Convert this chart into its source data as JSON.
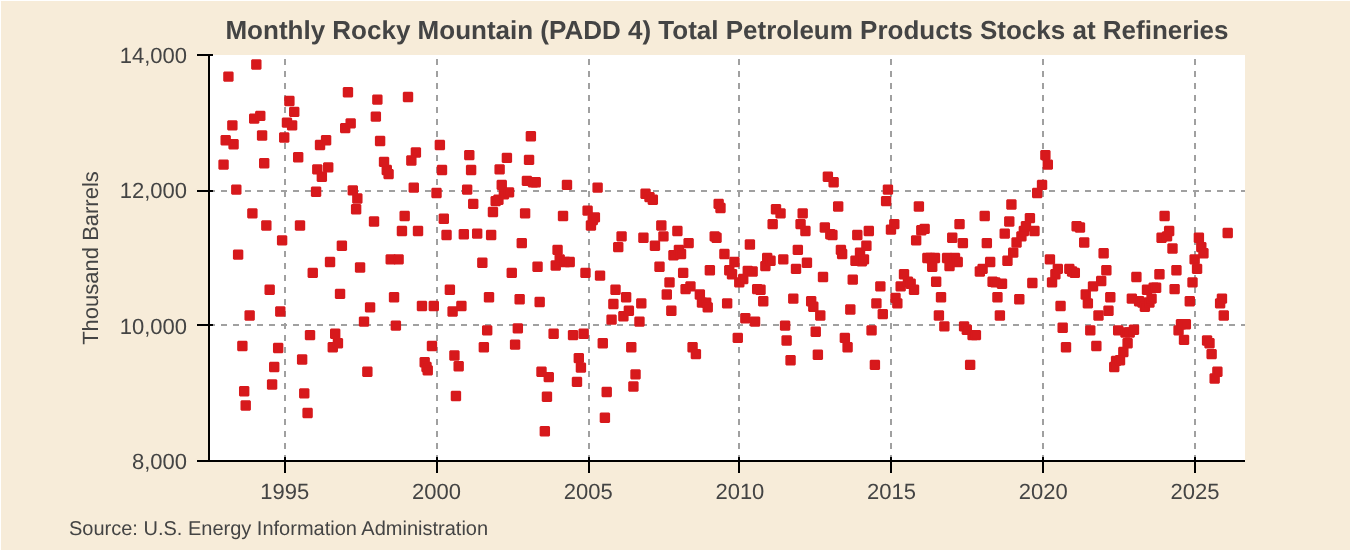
{
  "chart_data": {
    "type": "scatter",
    "title": "Monthly Rocky Mountain (PADD 4) Total Petroleum Products Stocks at Refineries",
    "ylabel": "Thousand Barrels",
    "annotations": [
      "Source: U.S. Energy Information Administration"
    ],
    "marker": "square",
    "grid": true,
    "xlim": [
      1992.5,
      2026.65
    ],
    "xticks": [
      1995,
      2000,
      2005,
      2010,
      2015,
      2020,
      2025
    ],
    "ylim": [
      8000,
      14000
    ],
    "yticks": [
      {
        "value": 8000,
        "label": "8,000"
      },
      {
        "value": 10000,
        "label": "10,000"
      },
      {
        "value": 12000,
        "label": "12,000"
      },
      {
        "value": 14000,
        "label": "14,000"
      }
    ],
    "series": [
      {
        "color": "#d7191c",
        "x": [
          1992.98,
          1993.05,
          1993.14,
          1993.27,
          1993.31,
          1993.4,
          1993.46,
          1993.6,
          1993.66,
          1993.71,
          1993.84,
          1993.93,
          1993.99,
          1994.06,
          1994.19,
          1994.25,
          1994.32,
          1994.39,
          1994.5,
          1994.58,
          1994.65,
          1994.78,
          1994.85,
          1994.91,
          1994.98,
          1995.07,
          1995.15,
          1995.24,
          1995.31,
          1995.44,
          1995.5,
          1995.57,
          1995.64,
          1995.75,
          1995.83,
          1995.92,
          1996.03,
          1996.07,
          1996.16,
          1996.22,
          1996.36,
          1996.43,
          1996.49,
          1996.58,
          1996.66,
          1996.75,
          1996.82,
          1996.88,
          1996.99,
          1997.08,
          1997.17,
          1997.24,
          1997.35,
          1997.39,
          1997.48,
          1997.61,
          1997.72,
          1997.81,
          1997.94,
          1998.0,
          1998.05,
          1998.14,
          1998.27,
          1998.36,
          1998.42,
          1998.49,
          1998.6,
          1998.66,
          1998.75,
          1998.86,
          1998.95,
          1999.06,
          1999.17,
          1999.25,
          1999.32,
          1999.39,
          1999.52,
          1999.61,
          1999.67,
          1999.71,
          1999.85,
          1999.91,
          2000.0,
          2000.11,
          2000.18,
          2000.24,
          2000.33,
          2000.44,
          2000.53,
          2000.59,
          2000.64,
          2000.73,
          2000.82,
          2000.9,
          2001.01,
          2001.08,
          2001.14,
          2001.21,
          2001.34,
          2001.51,
          2001.56,
          2001.67,
          2001.73,
          2001.8,
          2001.86,
          2001.95,
          2002.04,
          2002.08,
          2002.15,
          2002.22,
          2002.32,
          2002.39,
          2002.48,
          2002.59,
          2002.68,
          2002.74,
          2002.81,
          2002.92,
          2002.98,
          2003.05,
          2003.11,
          2003.18,
          2003.27,
          2003.33,
          2003.4,
          2003.46,
          2003.57,
          2003.64,
          2003.7,
          2003.86,
          2003.93,
          2003.99,
          2004.06,
          2004.17,
          2004.24,
          2004.3,
          2004.39,
          2004.5,
          2004.63,
          2004.69,
          2004.76,
          2004.85,
          2004.91,
          2004.98,
          2005.09,
          2005.15,
          2005.22,
          2005.31,
          2005.39,
          2005.48,
          2005.55,
          2005.61,
          2005.77,
          2005.83,
          2005.9,
          2005.99,
          2006.1,
          2006.16,
          2006.25,
          2006.34,
          2006.42,
          2006.49,
          2006.56,
          2006.69,
          2006.75,
          2006.82,
          2006.89,
          2007.02,
          2007.13,
          2007.2,
          2007.35,
          2007.41,
          2007.48,
          2007.59,
          2007.68,
          2007.74,
          2007.81,
          2007.94,
          2007.99,
          2008.06,
          2008.13,
          2008.21,
          2008.31,
          2008.37,
          2008.44,
          2008.55,
          2008.68,
          2008.75,
          2008.89,
          2008.94,
          2009.01,
          2009.17,
          2009.23,
          2009.3,
          2009.36,
          2009.49,
          2009.58,
          2009.65,
          2009.74,
          2009.82,
          2009.93,
          2009.98,
          2010.11,
          2010.18,
          2010.26,
          2010.33,
          2010.42,
          2010.5,
          2010.57,
          2010.68,
          2010.77,
          2010.84,
          2010.9,
          2011.01,
          2011.08,
          2011.19,
          2011.34,
          2011.43,
          2011.49,
          2011.54,
          2011.67,
          2011.76,
          2011.85,
          2011.91,
          2012.0,
          2012.07,
          2012.16,
          2012.21,
          2012.35,
          2012.42,
          2012.5,
          2012.57,
          2012.65,
          2012.74,
          2012.8,
          2012.9,
          2012.98,
          2013.05,
          2013.09,
          2013.24,
          2013.33,
          2013.37,
          2013.46,
          2013.55,
          2013.64,
          2013.72,
          2013.81,
          2013.87,
          2013.96,
          2014.02,
          2014.09,
          2014.17,
          2014.25,
          2014.34,
          2014.45,
          2014.5,
          2014.63,
          2014.71,
          2014.82,
          2014.88,
          2014.98,
          2015.09,
          2015.13,
          2015.19,
          2015.3,
          2015.41,
          2015.54,
          2015.63,
          2015.74,
          2015.81,
          2015.9,
          2015.98,
          2016.09,
          2016.18,
          2016.28,
          2016.34,
          2016.43,
          2016.47,
          2016.56,
          2016.63,
          2016.74,
          2016.83,
          2016.91,
          2017.0,
          2017.09,
          2017.18,
          2017.24,
          2017.35,
          2017.39,
          2017.48,
          2017.59,
          2017.67,
          2017.78,
          2017.91,
          2018.0,
          2018.07,
          2018.14,
          2018.25,
          2018.33,
          2018.42,
          2018.49,
          2018.57,
          2018.64,
          2018.73,
          2018.82,
          2018.88,
          2018.95,
          2019.01,
          2019.12,
          2019.21,
          2019.28,
          2019.36,
          2019.43,
          2019.56,
          2019.64,
          2019.71,
          2019.8,
          2019.96,
          2020.07,
          2020.15,
          2020.22,
          2020.29,
          2020.4,
          2020.48,
          2020.57,
          2020.64,
          2020.75,
          2020.86,
          2020.95,
          2021.04,
          2021.1,
          2021.21,
          2021.35,
          2021.4,
          2021.47,
          2021.55,
          2021.64,
          2021.75,
          2021.82,
          2021.91,
          2021.99,
          2022.08,
          2022.15,
          2022.21,
          2022.34,
          2022.4,
          2022.47,
          2022.53,
          2022.64,
          2022.71,
          2022.78,
          2022.85,
          2022.92,
          2022.99,
          2023.07,
          2023.16,
          2023.27,
          2023.35,
          2023.42,
          2023.5,
          2023.57,
          2023.64,
          2023.72,
          2023.83,
          2023.9,
          2024.0,
          2024.08,
          2024.15,
          2024.26,
          2024.33,
          2024.39,
          2024.46,
          2024.54,
          2024.64,
          2024.7,
          2024.83,
          2024.92,
          2024.99,
          2025.07,
          2025.13,
          2025.21,
          2025.28,
          2025.4,
          2025.48,
          2025.55,
          2025.65,
          2025.74,
          2025.83,
          2025.89,
          2025.95,
          2026.08
        ],
        "values": [
          12380,
          12740,
          13680,
          12960,
          12680,
          12010,
          11050,
          9700,
          9030,
          8820,
          10150,
          11660,
          13060,
          13860,
          13100,
          12810,
          12400,
          11480,
          10530,
          9130,
          9390,
          9670,
          10210,
          11260,
          12780,
          13000,
          13320,
          12960,
          13160,
          12490,
          11480,
          9500,
          9000,
          8710,
          9860,
          10780,
          11980,
          12310,
          12670,
          12200,
          12740,
          12340,
          10940,
          9680,
          9880,
          9740,
          10470,
          11180,
          12920,
          13450,
          12990,
          12000,
          11720,
          11880,
          10860,
          10060,
          9320,
          10270,
          11540,
          13090,
          13340,
          12730,
          12420,
          12300,
          12240,
          10980,
          10420,
          10000,
          10980,
          11400,
          11620,
          13380,
          12440,
          12040,
          12560,
          11400,
          10290,
          9460,
          9390,
          9340,
          9700,
          10290,
          11960,
          12670,
          12300,
          11580,
          11340,
          10530,
          10210,
          9560,
          8960,
          9400,
          10290,
          11350,
          12010,
          12520,
          12300,
          11800,
          11360,
          10930,
          9680,
          9930,
          10420,
          11340,
          11680,
          11840,
          11860,
          12310,
          12080,
          11940,
          12480,
          11970,
          10780,
          9720,
          9960,
          10390,
          11220,
          11660,
          12140,
          12450,
          12800,
          12120,
          12120,
          10870,
          10350,
          9320,
          8440,
          8950,
          9240,
          9880,
          10890,
          11120,
          10980,
          11620,
          10940,
          12080,
          10940,
          9860,
          9170,
          9520,
          9380,
          9880,
          10780,
          11700,
          11480,
          11560,
          11600,
          12040,
          10740,
          9740,
          8640,
          9020,
          10090,
          10320,
          10530,
          11160,
          11320,
          10140,
          10420,
          10220,
          9680,
          9100,
          9280,
          10060,
          10330,
          11300,
          11950,
          11900,
          11860,
          11180,
          10870,
          11480,
          11320,
          10460,
          10640,
          10220,
          11040,
          11400,
          11120,
          11060,
          10780,
          10540,
          11220,
          10580,
          9680,
          9580,
          10460,
          10340,
          10340,
          10270,
          10820,
          11320,
          11300,
          11800,
          11740,
          11060,
          10330,
          10820,
          10760,
          10940,
          9820,
          10640,
          10690,
          10110,
          10810,
          11200,
          10800,
          10060,
          10540,
          10530,
          10360,
          10880,
          11000,
          10960,
          11500,
          11720,
          11660,
          10980,
          10000,
          9780,
          9490,
          10400,
          10840,
          11120,
          11500,
          11660,
          11400,
          10930,
          10360,
          10280,
          9910,
          9570,
          10150,
          10720,
          11450,
          12200,
          11350,
          11340,
          12120,
          11760,
          11120,
          11060,
          9820,
          9680,
          10240,
          10680,
          10960,
          11340,
          11080,
          10950,
          10980,
          11180,
          11400,
          9930,
          9420,
          10330,
          10580,
          10170,
          11840,
          12010,
          11420,
          11500,
          10410,
          10330,
          10580,
          10760,
          10650,
          10620,
          10530,
          11260,
          11760,
          11410,
          11430,
          11000,
          11000,
          10870,
          11000,
          10650,
          10150,
          10420,
          9990,
          11000,
          10880,
          11300,
          11000,
          10940,
          11500,
          11220,
          9990,
          9940,
          9420,
          9860,
          9860,
          10800,
          10840,
          11620,
          11220,
          10940,
          10650,
          10640,
          10420,
          10150,
          10620,
          11360,
          10960,
          11540,
          11790,
          11080,
          11230,
          10390,
          11320,
          11400,
          11470,
          11590,
          10630,
          11400,
          11960,
          12080,
          12520,
          12380,
          10980,
          10640,
          10760,
          10840,
          10290,
          9970,
          9680,
          10840,
          10800,
          10780,
          11470,
          11450,
          11230,
          10460,
          10330,
          9930,
          10580,
          9700,
          10150,
          10660,
          11070,
          10820,
          10220,
          10420,
          9390,
          9480,
          9930,
          9490,
          9610,
          9900,
          9740,
          9900,
          10400,
          9940,
          10720,
          10360,
          10340,
          10280,
          10530,
          10340,
          10400,
          10560,
          10560,
          10760,
          11300,
          11620,
          11320,
          11400,
          11140,
          10540,
          10820,
          9930,
          10020,
          9790,
          10020,
          10360,
          10640,
          10980,
          10840,
          11300,
          11160,
          11070,
          9780,
          9740,
          9580,
          9220,
          9320,
          10330,
          10400,
          10150,
          11370
        ]
      }
    ]
  }
}
